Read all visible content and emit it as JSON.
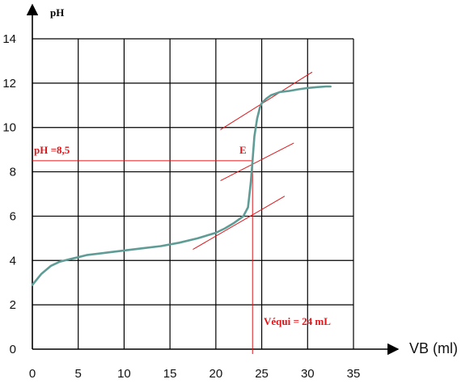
{
  "chart_data": {
    "type": "line",
    "title": "",
    "xlabel": "VB (ml)",
    "ylabel": "pH",
    "xlim": [
      0,
      35
    ],
    "ylim": [
      0,
      14
    ],
    "grid": true,
    "x_ticks": [
      "0",
      "5",
      "10",
      "15",
      "20",
      "25",
      "30",
      "35"
    ],
    "y_ticks": [
      "0",
      "2",
      "4",
      "6",
      "8",
      "10",
      "12",
      "14"
    ],
    "curve_color": "#5f9c96",
    "annotation_color": "#e0161b",
    "series": [
      {
        "x": [
          0,
          1,
          2,
          3,
          4,
          5,
          6,
          8,
          10,
          12,
          14,
          16,
          18,
          20,
          21,
          22,
          23,
          23.5,
          23.8,
          24,
          24.2,
          24.5,
          24.8,
          25,
          25.5,
          26,
          27,
          28,
          29,
          30,
          31,
          32,
          32.5
        ],
        "y": [
          2.9,
          3.4,
          3.75,
          3.95,
          4.05,
          4.15,
          4.25,
          4.35,
          4.45,
          4.55,
          4.65,
          4.8,
          5.0,
          5.25,
          5.45,
          5.7,
          6.0,
          6.4,
          7.5,
          8.5,
          9.6,
          10.4,
          10.9,
          11.1,
          11.3,
          11.45,
          11.6,
          11.65,
          11.72,
          11.78,
          11.82,
          11.85,
          11.85
        ]
      }
    ],
    "tangents": [
      {
        "x": [
          17.5,
          27.5
        ],
        "y": [
          4.5,
          6.9
        ]
      },
      {
        "x": [
          20.5,
          30.5
        ],
        "y": [
          9.9,
          12.5
        ]
      },
      {
        "x": [
          20.5,
          28.5
        ],
        "y": [
          7.6,
          9.3
        ]
      }
    ],
    "equivalence_point": {
      "x": 24,
      "y": 8.5
    },
    "annotations": {
      "ph_label": "pH =8,5",
      "e_label": "E",
      "vequi_label": "Véqui = 24 mL"
    }
  }
}
